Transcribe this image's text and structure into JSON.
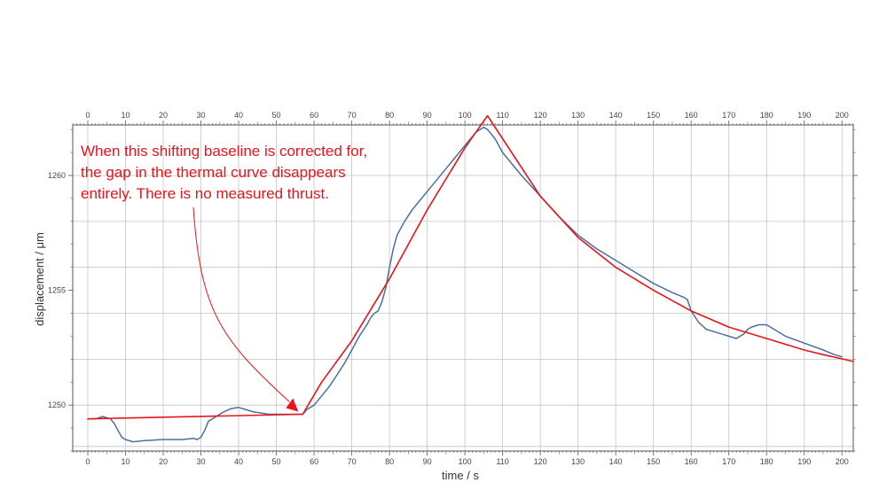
{
  "colors": {
    "measured": "#4a6fa5",
    "fit": "#e8141b",
    "annotation": "#e8141b",
    "grid": "#c4c4c4",
    "frame": "#555555"
  },
  "chart_data": {
    "type": "line",
    "xlabel": "time / s",
    "ylabel": "displacement / μm",
    "xlim": [
      -4,
      203
    ],
    "ylim": [
      1248,
      1262.2
    ],
    "x_ticks": [
      0,
      10,
      20,
      30,
      40,
      50,
      60,
      70,
      80,
      90,
      100,
      110,
      120,
      130,
      140,
      150,
      160,
      170,
      180,
      190,
      200
    ],
    "y_tick_labels": [
      1250,
      1255,
      1260
    ],
    "y_gridlines": [
      1248.2,
      1250,
      1252,
      1254,
      1256,
      1258,
      1260
    ],
    "grid": true,
    "series": [
      {
        "key": "measured",
        "points": [
          [
            0,
            1249.4
          ],
          [
            2,
            1249.4
          ],
          [
            4,
            1249.5
          ],
          [
            6,
            1249.4
          ],
          [
            7,
            1249.2
          ],
          [
            8,
            1248.9
          ],
          [
            9,
            1248.6
          ],
          [
            10,
            1248.5
          ],
          [
            12,
            1248.4
          ],
          [
            15,
            1248.45
          ],
          [
            20,
            1248.5
          ],
          [
            25,
            1248.5
          ],
          [
            28,
            1248.55
          ],
          [
            29,
            1248.5
          ],
          [
            30,
            1248.6
          ],
          [
            31,
            1248.9
          ],
          [
            32,
            1249.3
          ],
          [
            34,
            1249.5
          ],
          [
            36,
            1249.7
          ],
          [
            38,
            1249.85
          ],
          [
            40,
            1249.9
          ],
          [
            42,
            1249.8
          ],
          [
            44,
            1249.7
          ],
          [
            48,
            1249.6
          ],
          [
            52,
            1249.6
          ],
          [
            55,
            1249.6
          ],
          [
            57,
            1249.6
          ],
          [
            58,
            1249.8
          ],
          [
            60,
            1250.0
          ],
          [
            62,
            1250.4
          ],
          [
            64,
            1250.8
          ],
          [
            66,
            1251.3
          ],
          [
            68,
            1251.8
          ],
          [
            70,
            1252.4
          ],
          [
            72,
            1253.0
          ],
          [
            74,
            1253.5
          ],
          [
            75,
            1253.8
          ],
          [
            76,
            1254.0
          ],
          [
            77,
            1254.1
          ],
          [
            78,
            1254.5
          ],
          [
            79,
            1255.1
          ],
          [
            80,
            1256.0
          ],
          [
            81,
            1256.8
          ],
          [
            82,
            1257.4
          ],
          [
            84,
            1258.0
          ],
          [
            86,
            1258.5
          ],
          [
            88,
            1258.9
          ],
          [
            90,
            1259.3
          ],
          [
            95,
            1260.3
          ],
          [
            100,
            1261.3
          ],
          [
            103,
            1261.9
          ],
          [
            105,
            1262.1
          ],
          [
            106,
            1262.0
          ],
          [
            108,
            1261.6
          ],
          [
            110,
            1261.0
          ],
          [
            115,
            1260.0
          ],
          [
            120,
            1259.1
          ],
          [
            125,
            1258.2
          ],
          [
            130,
            1257.4
          ],
          [
            135,
            1256.8
          ],
          [
            140,
            1256.3
          ],
          [
            145,
            1255.8
          ],
          [
            150,
            1255.3
          ],
          [
            155,
            1254.9
          ],
          [
            158,
            1254.7
          ],
          [
            159,
            1254.6
          ],
          [
            160,
            1254.1
          ],
          [
            162,
            1253.6
          ],
          [
            164,
            1253.3
          ],
          [
            166,
            1253.2
          ],
          [
            168,
            1253.1
          ],
          [
            170,
            1253.0
          ],
          [
            172,
            1252.9
          ],
          [
            174,
            1253.1
          ],
          [
            175,
            1253.3
          ],
          [
            176,
            1253.4
          ],
          [
            178,
            1253.5
          ],
          [
            180,
            1253.5
          ],
          [
            182,
            1253.3
          ],
          [
            185,
            1253.0
          ],
          [
            190,
            1252.7
          ],
          [
            195,
            1252.4
          ],
          [
            198,
            1252.2
          ],
          [
            200,
            1252.1
          ]
        ]
      },
      {
        "key": "fit",
        "points": [
          [
            0,
            1249.4
          ],
          [
            57,
            1249.6
          ],
          [
            62,
            1251.0
          ],
          [
            70,
            1252.8
          ],
          [
            80,
            1255.5
          ],
          [
            90,
            1258.5
          ],
          [
            100,
            1261.2
          ],
          [
            106,
            1262.6
          ],
          [
            110,
            1261.6
          ],
          [
            120,
            1259.1
          ],
          [
            130,
            1257.3
          ],
          [
            140,
            1256.0
          ],
          [
            150,
            1255.0
          ],
          [
            160,
            1254.1
          ],
          [
            170,
            1253.4
          ],
          [
            180,
            1252.9
          ],
          [
            190,
            1252.4
          ],
          [
            195,
            1252.2
          ],
          [
            203,
            1251.9
          ]
        ]
      }
    ],
    "annotation": {
      "lines": [
        "When this shifting baseline is corrected for,",
        "the gap in the thermal curve disappears",
        "entirely.  There is no measured thrust."
      ],
      "arrow_to": [
        57,
        1249.6
      ]
    }
  }
}
